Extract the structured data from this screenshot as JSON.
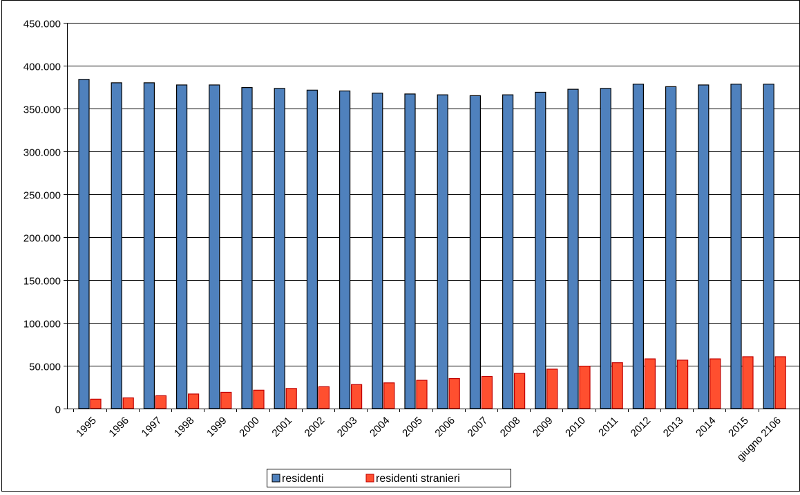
{
  "chart_data": {
    "type": "bar",
    "categories": [
      "1995",
      "1996",
      "1997",
      "1998",
      "1999",
      "2000",
      "2001",
      "2002",
      "2003",
      "2004",
      "2005",
      "2006",
      "2007",
      "2008",
      "2009",
      "2010",
      "2011",
      "2012",
      "2013",
      "2014",
      "2015",
      "giugno 2106"
    ],
    "series": [
      {
        "name": "residenti",
        "color": "#4F81BD",
        "values": [
          384000,
          380000,
          380000,
          377500,
          377500,
          374500,
          373500,
          371500,
          370500,
          368000,
          367000,
          366000,
          365000,
          366000,
          369000,
          372500,
          373500,
          378500,
          375500,
          377500,
          378500,
          378500
        ]
      },
      {
        "name": "residenti stranieri",
        "color": "#FF4F2F",
        "values": [
          11000,
          12500,
          15000,
          17000,
          19000,
          21500,
          23500,
          25500,
          28000,
          30000,
          33000,
          35000,
          37500,
          41000,
          46000,
          49500,
          53500,
          58000,
          56500,
          58000,
          60500,
          60500
        ]
      }
    ],
    "y_ticks": [
      "0",
      "50.000",
      "100.000",
      "150.000",
      "200.000",
      "250.000",
      "300.000",
      "350.000",
      "400.000",
      "450.000"
    ],
    "ylim": [
      0,
      450000
    ],
    "grid": true,
    "legend_position": "bottom-center",
    "title": "",
    "xlabel": "",
    "ylabel": ""
  }
}
